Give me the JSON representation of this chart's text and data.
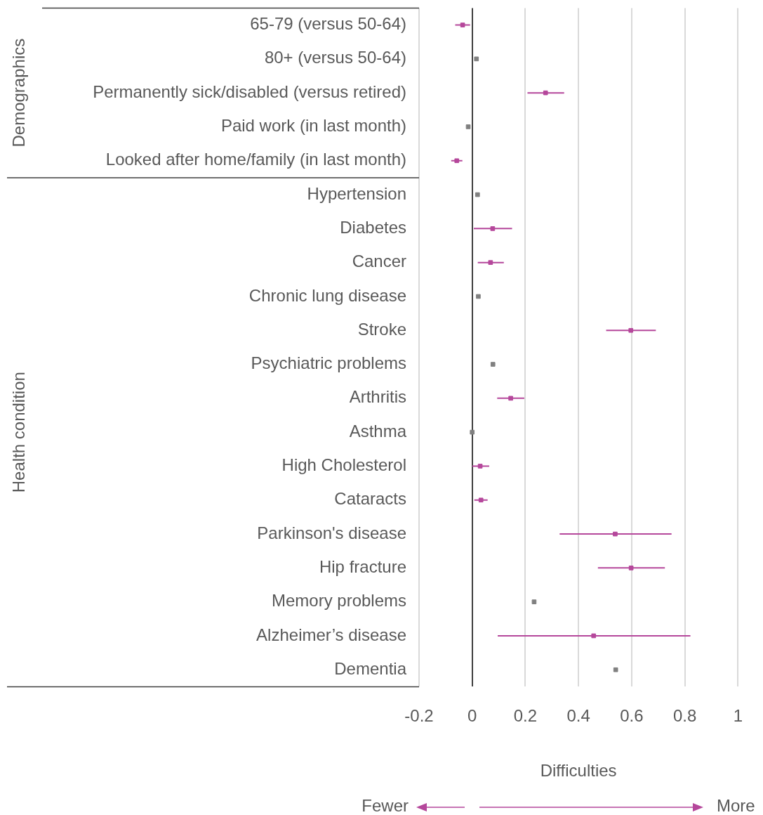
{
  "chart_data": {
    "type": "scatter",
    "orientation": "horizontal",
    "xlabel": "Difficulties",
    "categories": [
      "65-79 (versus 50-64)",
      "80+ (versus 50-64)",
      "Permanently sick/disabled (versus retired)",
      "Paid work (in last month)",
      "Looked after home/family (in last month)",
      "Hypertension",
      "Diabetes",
      "Cancer",
      "Chronic lung disease",
      "Stroke",
      "Psychiatric problems",
      "Arthritis",
      "Asthma",
      "High Cholesterol",
      "Cataracts",
      "Parkinson's disease",
      "Hip fracture",
      "Memory problems",
      "Alzheimer’s disease",
      "Dementia"
    ],
    "series": [
      {
        "color": "#b5479b",
        "values": [
          -0.036,
          null,
          0.276,
          null,
          -0.058,
          null,
          0.077,
          0.069,
          null,
          0.597,
          null,
          0.145,
          null,
          0.03,
          0.033,
          0.538,
          0.598,
          null,
          0.457,
          null
        ],
        "errors": [
          [
            -0.064,
            -0.008
          ],
          null,
          [
            0.208,
            0.346
          ],
          null,
          [
            -0.079,
            -0.037
          ],
          null,
          [
            0.006,
            0.15
          ],
          [
            0.021,
            0.119
          ],
          null,
          [
            0.504,
            0.691
          ],
          null,
          [
            0.094,
            0.196
          ],
          null,
          [
            0.0,
            0.064
          ],
          [
            0.008,
            0.058
          ],
          [
            0.329,
            0.75
          ],
          [
            0.473,
            0.725
          ],
          null,
          [
            0.096,
            0.821
          ],
          null
        ]
      },
      {
        "color": "#808080",
        "values": [
          null,
          0.016,
          null,
          -0.015,
          null,
          0.02,
          null,
          null,
          0.023,
          null,
          0.078,
          null,
          0.0,
          null,
          null,
          null,
          null,
          0.233,
          null,
          0.54
        ]
      }
    ],
    "xlim": [
      -0.2,
      1
    ],
    "xticks": [
      -0.2,
      0,
      0.2,
      0.4,
      0.6,
      0.8,
      1
    ],
    "grid": "x",
    "legend": false,
    "marker": "square",
    "annotations": [
      "Demographics",
      "Health condition",
      "Fewer",
      "More"
    ]
  }
}
